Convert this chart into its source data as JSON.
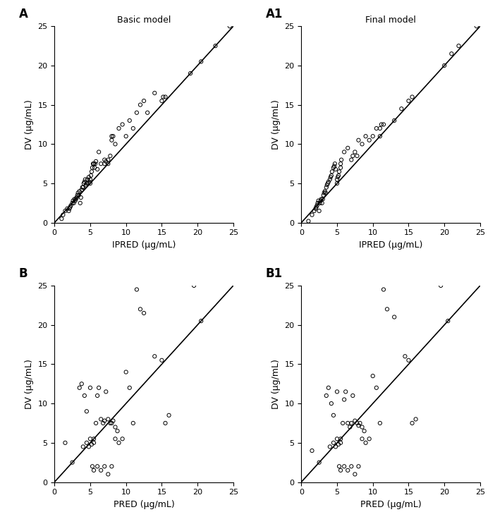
{
  "title_A": "Basic model",
  "title_A1": "Final model",
  "label_A": "A",
  "label_A1": "A1",
  "label_B": "B",
  "label_B1": "B1",
  "xlabel_top": "IPRED (μg/mL)",
  "xlabel_bottom": "PRED (μg/mL)",
  "ylabel": "DV (μg/mL)",
  "xlim": [
    0,
    25
  ],
  "ylim": [
    0,
    25
  ],
  "xticks": [
    0,
    5,
    10,
    15,
    20,
    25
  ],
  "yticks": [
    0,
    5,
    10,
    15,
    20,
    25
  ],
  "scatter_A_x": [
    1.0,
    1.2,
    1.5,
    1.8,
    2.0,
    2.1,
    2.2,
    2.3,
    2.5,
    2.6,
    2.7,
    2.8,
    2.9,
    3.0,
    3.1,
    3.2,
    3.3,
    3.4,
    3.5,
    3.6,
    3.7,
    3.8,
    3.9,
    4.0,
    4.1,
    4.2,
    4.3,
    4.4,
    4.5,
    4.6,
    4.7,
    4.8,
    4.9,
    5.0,
    5.0,
    5.1,
    5.2,
    5.3,
    5.4,
    5.5,
    5.6,
    5.7,
    5.8,
    6.0,
    6.2,
    6.5,
    7.0,
    7.0,
    7.2,
    7.5,
    7.5,
    7.8,
    8.0,
    8.0,
    8.2,
    8.5,
    9.0,
    9.5,
    10.0,
    10.5,
    11.0,
    11.5,
    12.0,
    12.5,
    13.0,
    14.0,
    15.0,
    15.2,
    15.5,
    19.0,
    20.5,
    22.5,
    24.5
  ],
  "scatter_A_y": [
    0.5,
    1.0,
    1.5,
    1.8,
    1.5,
    1.8,
    2.0,
    2.2,
    2.5,
    2.8,
    2.5,
    3.0,
    2.8,
    3.0,
    3.2,
    3.5,
    3.8,
    3.5,
    4.0,
    2.5,
    3.2,
    4.2,
    4.5,
    4.5,
    5.0,
    5.2,
    5.5,
    4.8,
    5.0,
    5.5,
    5.0,
    5.8,
    5.2,
    5.5,
    5.0,
    6.0,
    6.5,
    7.0,
    7.5,
    7.5,
    7.0,
    7.5,
    7.8,
    6.8,
    9.0,
    7.5,
    7.5,
    8.0,
    7.8,
    7.5,
    8.0,
    8.5,
    10.5,
    11.0,
    11.0,
    10.0,
    12.0,
    12.5,
    11.0,
    13.0,
    12.0,
    14.0,
    15.0,
    15.5,
    14.0,
    16.5,
    15.5,
    16.0,
    16.0,
    19.0,
    20.5,
    22.5,
    25.0
  ],
  "scatter_A1_x": [
    1.0,
    1.5,
    1.8,
    2.0,
    2.1,
    2.2,
    2.3,
    2.4,
    2.5,
    2.6,
    2.7,
    2.8,
    2.9,
    3.0,
    3.1,
    3.2,
    3.3,
    3.4,
    3.5,
    3.6,
    3.7,
    3.8,
    4.0,
    4.1,
    4.2,
    4.3,
    4.5,
    4.6,
    4.7,
    4.8,
    5.0,
    5.0,
    5.1,
    5.2,
    5.3,
    5.5,
    5.5,
    5.6,
    6.0,
    6.5,
    7.0,
    7.2,
    7.5,
    7.8,
    8.0,
    8.5,
    9.0,
    9.5,
    10.0,
    10.5,
    11.0,
    11.0,
    11.2,
    11.5,
    13.0,
    14.0,
    15.0,
    15.5,
    20.0,
    21.0,
    22.0,
    24.5
  ],
  "scatter_A1_y": [
    0.2,
    1.0,
    1.5,
    1.8,
    2.0,
    2.2,
    2.5,
    2.8,
    1.5,
    2.5,
    2.8,
    3.0,
    2.5,
    3.0,
    3.5,
    3.8,
    4.0,
    3.8,
    4.5,
    4.8,
    5.0,
    5.2,
    5.5,
    5.8,
    6.0,
    6.5,
    7.0,
    7.2,
    7.5,
    6.8,
    5.0,
    5.5,
    5.8,
    6.0,
    6.5,
    7.0,
    7.5,
    8.0,
    9.0,
    9.5,
    8.0,
    8.5,
    9.0,
    8.5,
    10.5,
    10.0,
    11.0,
    10.5,
    11.0,
    12.0,
    11.0,
    12.0,
    12.5,
    12.5,
    13.0,
    14.5,
    15.5,
    16.0,
    20.0,
    21.5,
    22.5,
    25.0
  ],
  "scatter_B_x": [
    1.5,
    2.5,
    3.5,
    3.8,
    4.0,
    4.2,
    4.5,
    4.5,
    4.8,
    5.0,
    5.0,
    5.2,
    5.3,
    5.5,
    5.5,
    5.5,
    5.8,
    6.0,
    6.0,
    6.2,
    6.5,
    6.5,
    6.8,
    7.0,
    7.0,
    7.2,
    7.5,
    7.5,
    7.8,
    8.0,
    8.0,
    8.2,
    8.5,
    8.5,
    8.8,
    9.0,
    9.5,
    10.0,
    10.5,
    11.0,
    11.5,
    12.0,
    12.5,
    14.0,
    15.0,
    15.5,
    16.0,
    19.5,
    20.5
  ],
  "scatter_B_y": [
    5.0,
    2.5,
    12.0,
    12.5,
    4.5,
    11.0,
    5.0,
    9.0,
    4.5,
    5.5,
    12.0,
    4.8,
    2.0,
    5.0,
    1.5,
    5.5,
    7.5,
    2.0,
    11.0,
    12.0,
    1.5,
    8.0,
    7.5,
    7.8,
    2.0,
    11.5,
    8.0,
    1.0,
    7.5,
    7.5,
    2.0,
    7.8,
    5.5,
    7.0,
    6.5,
    5.0,
    5.5,
    14.0,
    12.0,
    7.5,
    24.5,
    22.0,
    21.5,
    16.0,
    15.5,
    7.5,
    8.5,
    25.0,
    20.5
  ],
  "scatter_B1_x": [
    1.5,
    2.5,
    3.5,
    3.8,
    4.0,
    4.2,
    4.5,
    4.5,
    4.8,
    5.0,
    5.0,
    5.2,
    5.3,
    5.5,
    5.5,
    5.5,
    5.8,
    6.0,
    6.0,
    6.2,
    6.5,
    6.5,
    6.8,
    7.0,
    7.0,
    7.2,
    7.5,
    7.5,
    7.8,
    8.0,
    8.0,
    8.2,
    8.5,
    8.5,
    8.8,
    9.0,
    9.5,
    10.0,
    10.5,
    11.0,
    11.5,
    12.0,
    13.0,
    14.5,
    15.0,
    15.5,
    16.0,
    19.5,
    20.5
  ],
  "scatter_B1_y": [
    4.0,
    2.5,
    11.0,
    12.0,
    4.5,
    10.0,
    5.0,
    8.5,
    4.5,
    5.5,
    11.5,
    4.8,
    2.0,
    5.0,
    1.5,
    5.5,
    7.5,
    2.0,
    10.5,
    11.5,
    1.5,
    7.5,
    7.0,
    7.5,
    2.0,
    11.0,
    7.8,
    1.0,
    7.5,
    7.2,
    2.0,
    7.5,
    5.5,
    7.0,
    6.5,
    5.0,
    5.5,
    13.5,
    12.0,
    7.5,
    24.5,
    22.0,
    21.0,
    16.0,
    15.5,
    7.5,
    8.0,
    25.0,
    20.5
  ],
  "line_color": "#000000",
  "marker_color": "none",
  "marker_edge_color": "#000000",
  "marker_size": 14,
  "marker_edge_width": 0.7,
  "line_width": 1.2,
  "font_size": 9,
  "label_font_size": 12,
  "tick_font_size": 8
}
